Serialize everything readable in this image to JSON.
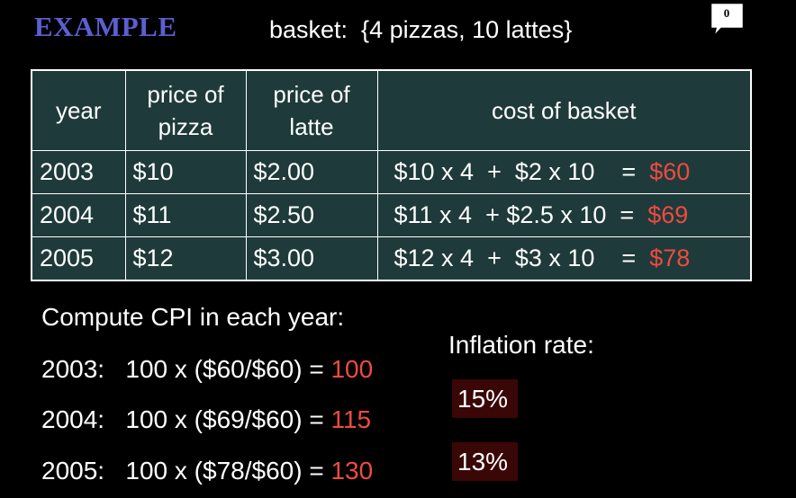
{
  "title": "EXAMPLE",
  "basket": "basket:  {4 pizzas, 10 lattes}",
  "comment_count": "0",
  "table": {
    "headers": {
      "year": "year",
      "pizza_line1": "price of",
      "pizza_line2": "pizza",
      "latte_line1": "price of",
      "latte_line2": "latte",
      "cost": "cost of basket"
    },
    "rows": [
      {
        "year": "2003",
        "pizza": "$10",
        "latte": "$2.00",
        "formula": "$10 x 4  +  $2 x 10    =  ",
        "cost": "$60"
      },
      {
        "year": "2004",
        "pizza": "$11",
        "latte": "$2.50",
        "formula": "$11 x 4  + $2.5 x 10  =  ",
        "cost": "$69"
      },
      {
        "year": "2005",
        "pizza": "$12",
        "latte": "$3.00",
        "formula": "$12 x 4  +  $3 x 10    =  ",
        "cost": "$78"
      }
    ]
  },
  "compute": {
    "title": "Compute CPI in each year:",
    "lines": [
      {
        "expr": "2003:   100 x ($60/$60) = ",
        "value": "100"
      },
      {
        "expr": "2004:   100 x ($69/$60) = ",
        "value": "115"
      },
      {
        "expr": "2005:   100 x ($78/$60) = ",
        "value": "130"
      }
    ]
  },
  "inflation": {
    "title": "Inflation rate:",
    "values": [
      "15%",
      "13%"
    ]
  },
  "colors": {
    "title": "#5b5fd0",
    "table_bg": "#1f3a3a",
    "highlight": "#ee4b40",
    "inflation_box": "#3a0606"
  }
}
